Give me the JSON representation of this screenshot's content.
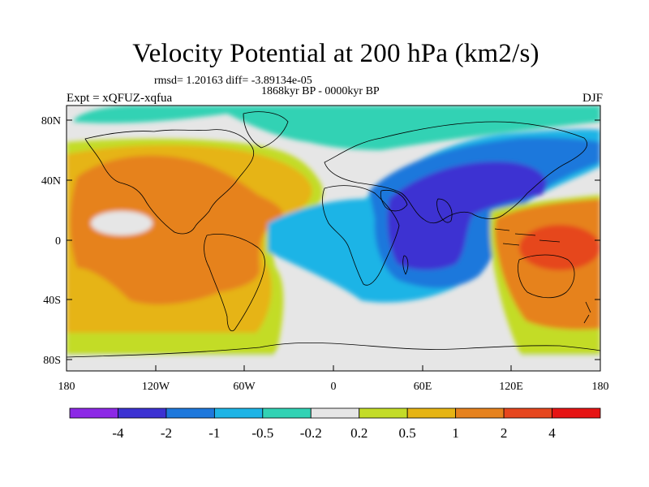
{
  "title": "Velocity Potential at 200 hPa (km2/s)",
  "stats": "rmsd= 1.20163 diff= -3.89134e-05",
  "period": "1868kyr BP - 0000kyr BP",
  "experiment": "Expt = xQFUZ-xqfua",
  "season": "DJF",
  "axes": {
    "lat_labels": [
      "80N",
      "40N",
      "0",
      "40S",
      "80S"
    ],
    "lon_labels": [
      "180",
      "120W",
      "60W",
      "0",
      "60E",
      "120E",
      "180"
    ]
  },
  "colorbar": {
    "colors": [
      "#8c28e6",
      "#3c32d2",
      "#1e78dc",
      "#1eb4e6",
      "#32d2b4",
      "#e6e6e6",
      "#c3dc28",
      "#e6b414",
      "#e6821e",
      "#e6461e",
      "#e61414"
    ],
    "labels": [
      "-4",
      "-2",
      "-1",
      "-0.5",
      "-0.2",
      "0.2",
      "0.5",
      "1",
      "2",
      "4"
    ]
  },
  "palette": {
    "background": "#e6e6e6",
    "light_positive": "#c3dc28",
    "positive": "#e6b414",
    "strong_positive": "#e6821e",
    "max_positive": "#e6461e",
    "weak_negative": "#32d2b4",
    "negative": "#1eb4e6",
    "moderate_negative": "#1e78dc",
    "strong_negative": "#3c32d2"
  }
}
